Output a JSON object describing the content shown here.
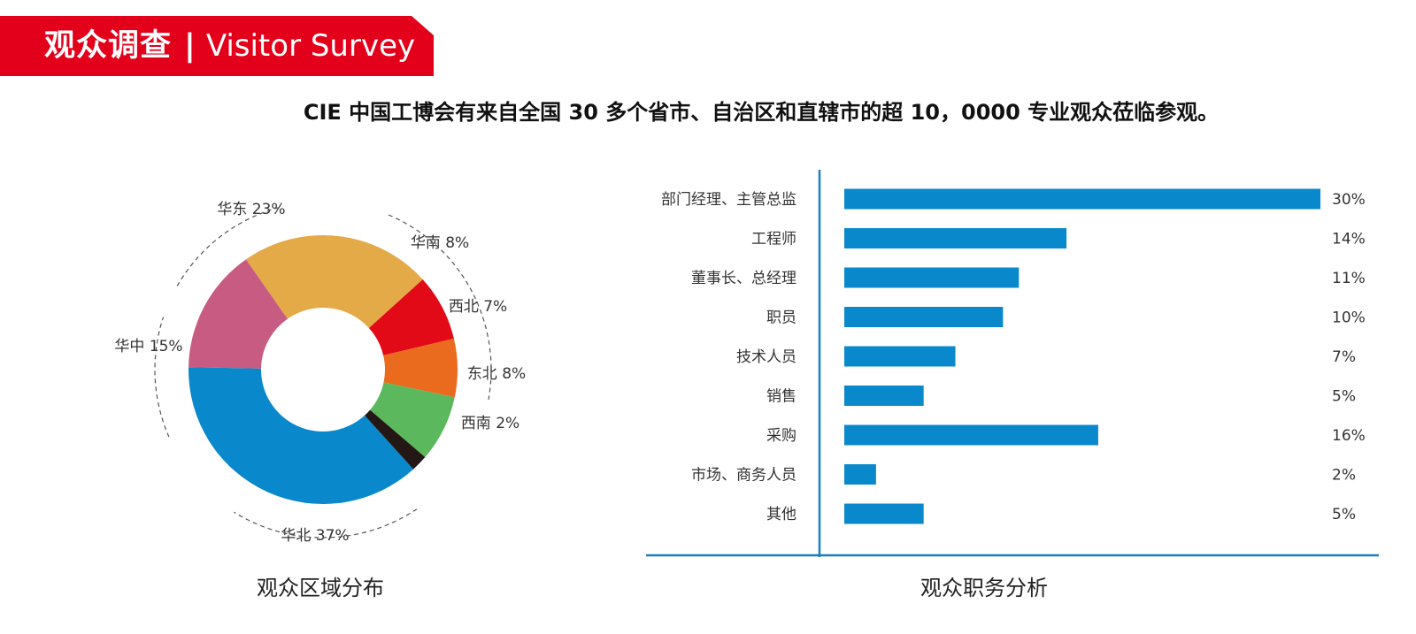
{
  "header": {
    "title_cn": "观众调查",
    "separator": "|",
    "title_en": "Visitor Survey",
    "brand_color": "#e3001b"
  },
  "subtitle": "CIE 中国工博会有来自全国 30 多个省市、自治区和直辖市的超 10，0000 专业观众莅临参观。",
  "chart_data": [
    {
      "type": "pie",
      "donut": true,
      "title": "观众区域分布",
      "slices": [
        {
          "label": "华东 23%",
          "value": 23,
          "color": "#e5aa48"
        },
        {
          "label": "华南 8%",
          "value": 8,
          "color": "#e30a17"
        },
        {
          "label": "西北 7%",
          "value": 7,
          "color": "#ea6a1e"
        },
        {
          "label": "东北 8%",
          "value": 8,
          "color": "#5cb85c"
        },
        {
          "label": "西南 2%",
          "value": 2,
          "color": "#231815"
        },
        {
          "label": "华北 37%",
          "value": 37,
          "color": "#0a88cc"
        },
        {
          "label": "华中 15%",
          "value": 15,
          "color": "#c85b81"
        }
      ]
    },
    {
      "type": "bar",
      "orientation": "horizontal",
      "title": "观众职务分析",
      "categories": [
        "部门经理、主管总监",
        "工程师",
        "董事长、总经理",
        "职员",
        "技术人员",
        "销售",
        "采购",
        "市场、商务人员",
        "其他"
      ],
      "values": [
        30,
        14,
        11,
        10,
        7,
        5,
        16,
        2,
        5
      ],
      "value_labels": [
        "30%",
        "14%",
        "11%",
        "10%",
        "7%",
        "5%",
        "16%",
        "2%",
        "5%"
      ],
      "xlim": [
        0,
        30
      ],
      "bar_color": "#0a88cc",
      "axis_color": "#1a7fbf"
    }
  ]
}
